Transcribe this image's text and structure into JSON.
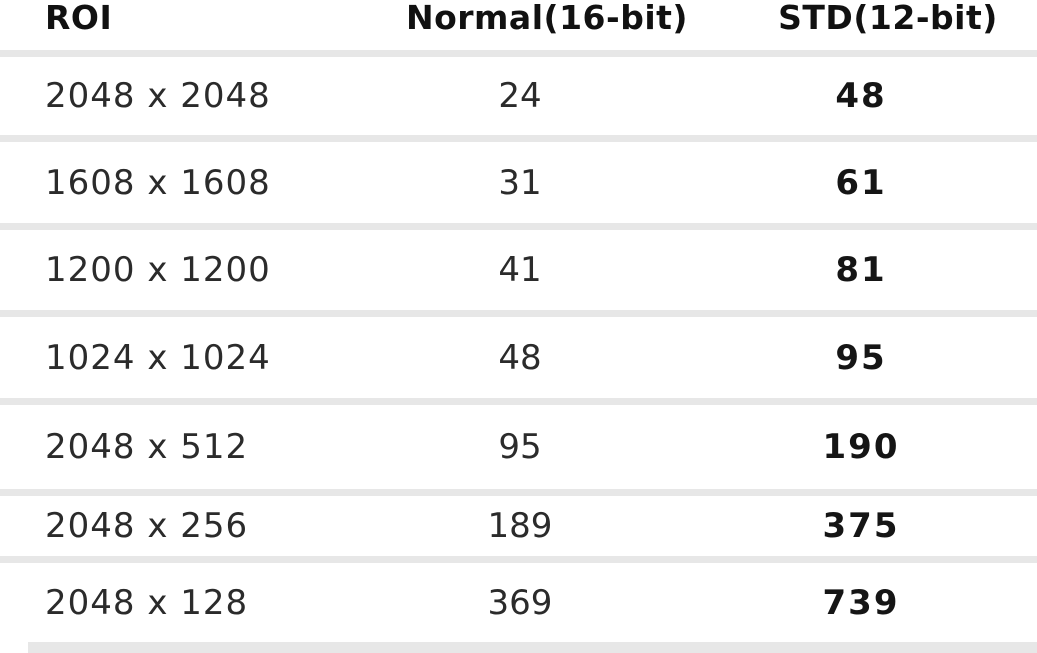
{
  "chart_data": {
    "type": "table",
    "title": "",
    "columns": [
      "ROI",
      "Normal(16-bit)",
      "STD(12-bit)"
    ],
    "rows": [
      [
        "2048 x 2048",
        24,
        48
      ],
      [
        "1608 x 1608",
        31,
        61
      ],
      [
        "1200 x 1200",
        41,
        81
      ],
      [
        "1024 x 1024",
        48,
        95
      ],
      [
        "2048 x 512",
        95,
        190
      ],
      [
        "2048 x 256",
        189,
        375
      ],
      [
        "2048 x 128",
        369,
        739
      ]
    ]
  },
  "colors": {
    "background": "#ffffff",
    "divider": "#e7e7e7",
    "heading_text": "#111111",
    "body_text": "#2b2b2b",
    "bold_value_text": "#151515"
  }
}
